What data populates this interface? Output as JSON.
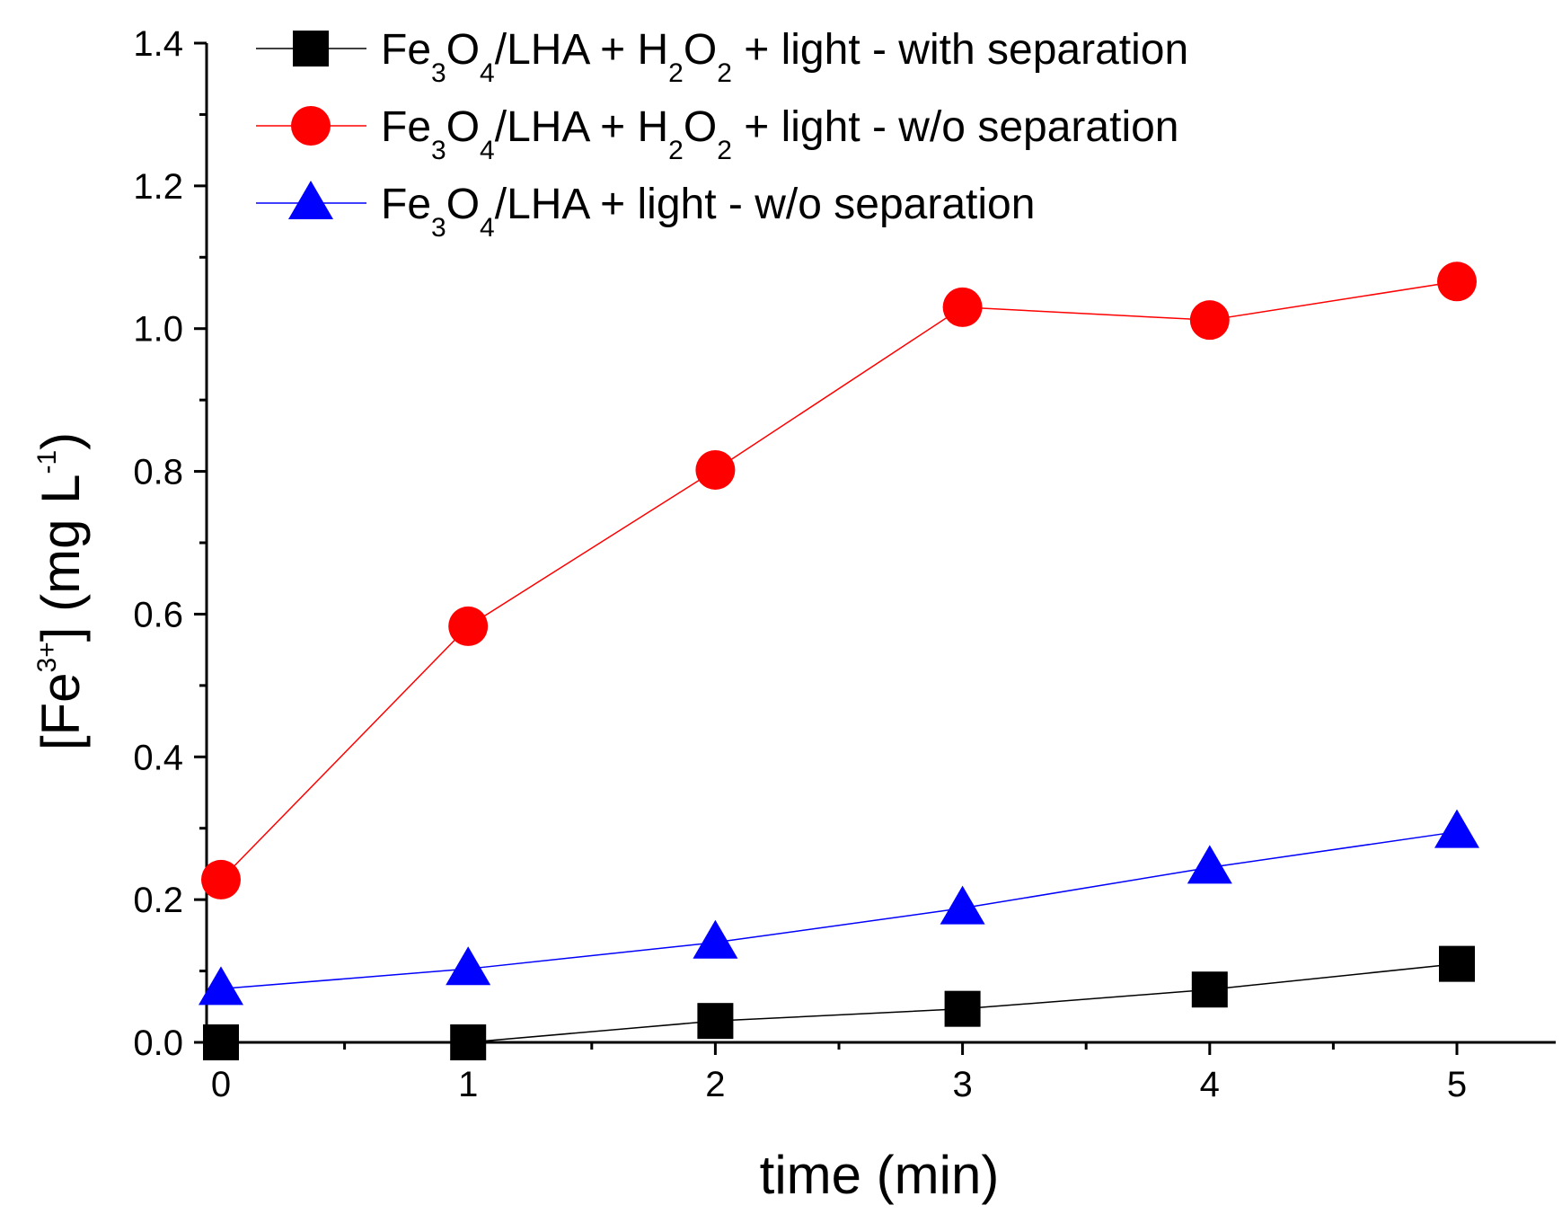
{
  "chart_data": {
    "type": "line",
    "title": "",
    "xlabel": "time (min)",
    "ylabel": {
      "prefix": "[Fe",
      "superscript": "3+",
      "middle": "] (mg L",
      "unit_superscript": "-1",
      "suffix": ")"
    },
    "xlim": [
      -0.1,
      5.4
    ],
    "ylim": [
      0.0,
      1.4
    ],
    "x": [
      0,
      1,
      2,
      3,
      4,
      5
    ],
    "x_ticks": [
      "0",
      "1",
      "2",
      "3",
      "4",
      "5"
    ],
    "y_ticks": [
      "0.0",
      "0.2",
      "0.4",
      "0.6",
      "0.8",
      "1.0",
      "1.2",
      "1.4"
    ],
    "grid": false,
    "legend_position": "top-left",
    "series": [
      {
        "name": "Fe3O4/LHA + H2O2 + light - with separation",
        "legend_parts": [
          {
            "t": "Fe",
            "s": "n"
          },
          {
            "t": "3",
            "s": "sub"
          },
          {
            "t": "O",
            "s": "n"
          },
          {
            "t": "4",
            "s": "sub"
          },
          {
            "t": "/LHA + H",
            "s": "n"
          },
          {
            "t": "2",
            "s": "sub"
          },
          {
            "t": "O",
            "s": "n"
          },
          {
            "t": "2",
            "s": "sub"
          },
          {
            "t": " + light - with separation",
            "s": "n"
          }
        ],
        "color": "#000000",
        "marker": "square",
        "values": [
          0.0,
          0.0,
          0.03,
          0.047,
          0.074,
          0.11
        ]
      },
      {
        "name": "Fe3O4/LHA + H2O2 + light - w/o separation",
        "legend_parts": [
          {
            "t": "Fe",
            "s": "n"
          },
          {
            "t": "3",
            "s": "sub"
          },
          {
            "t": "O",
            "s": "n"
          },
          {
            "t": "4",
            "s": "sub"
          },
          {
            "t": "/LHA + H",
            "s": "n"
          },
          {
            "t": "2",
            "s": "sub"
          },
          {
            "t": "O",
            "s": "n"
          },
          {
            "t": "2",
            "s": "sub"
          },
          {
            "t": " + light - w/o separation",
            "s": "n"
          }
        ],
        "color": "#ff0000",
        "marker": "circle",
        "values": [
          0.228,
          0.583,
          0.802,
          1.03,
          1.012,
          1.066
        ]
      },
      {
        "name": "Fe3O4/LHA + light - w/o separation",
        "legend_parts": [
          {
            "t": "Fe",
            "s": "n"
          },
          {
            "t": "3",
            "s": "sub"
          },
          {
            "t": "O",
            "s": "n"
          },
          {
            "t": "4",
            "s": "sub"
          },
          {
            "t": "/LHA + light - w/o separation",
            "s": "n"
          }
        ],
        "color": "#0000ff",
        "marker": "triangle",
        "values": [
          0.075,
          0.103,
          0.14,
          0.188,
          0.245,
          0.295
        ]
      }
    ]
  }
}
